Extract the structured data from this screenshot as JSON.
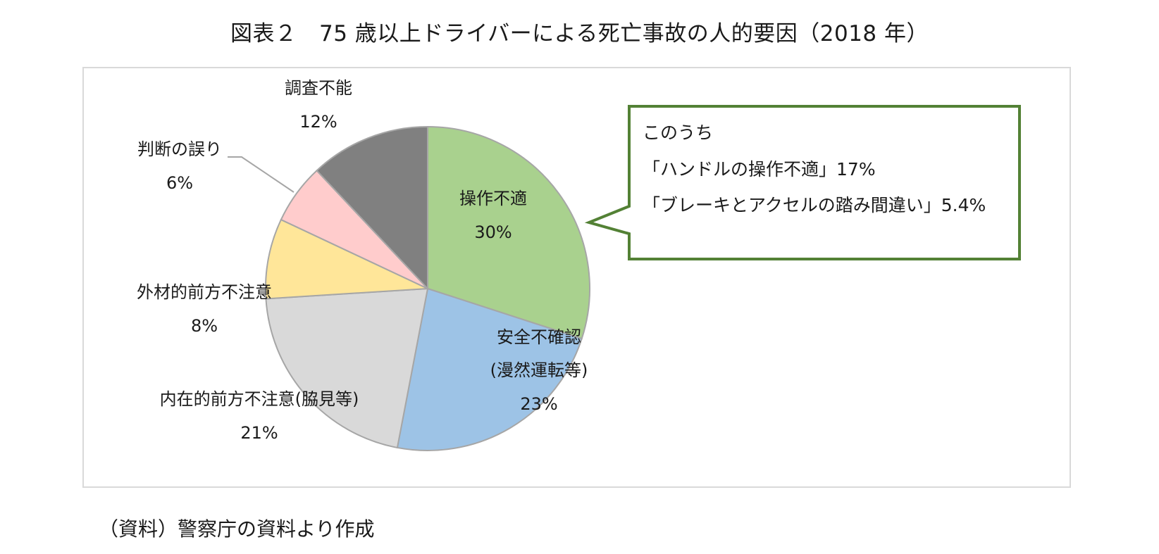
{
  "title": "図表２　75 歳以上ドライバーによる死亡事故の人的要因（2018 年）",
  "source": "（資料）警察庁の資料より作成",
  "chart_data": {
    "type": "pie",
    "start_angle_deg": 0,
    "direction": "clockwise",
    "slices": [
      {
        "label": "操作不適",
        "value": 30,
        "value_label": "30%",
        "color": "#a9d18e"
      },
      {
        "label": "安全不確認\n(漫然運転等)",
        "value": 23,
        "value_label": "23%",
        "color": "#9dc3e6"
      },
      {
        "label": "内在的前方不注意(脇見等)",
        "value": 21,
        "value_label": "21%",
        "color": "#d9d9d9"
      },
      {
        "label": "外材的前方不注意",
        "value": 8,
        "value_label": "8%",
        "color": "#ffe699"
      },
      {
        "label": "判断の誤り",
        "value": 6,
        "value_label": "6%",
        "color": "#ffcccc"
      },
      {
        "label": "調査不能",
        "value": 12,
        "value_label": "12%",
        "color": "#808080"
      }
    ],
    "callout": {
      "lines": [
        "このうち",
        "「ハンドルの操作不適」17%",
        "「ブレーキとアクセルの踏み間違い」5.4%"
      ],
      "border_color": "#538135"
    }
  }
}
